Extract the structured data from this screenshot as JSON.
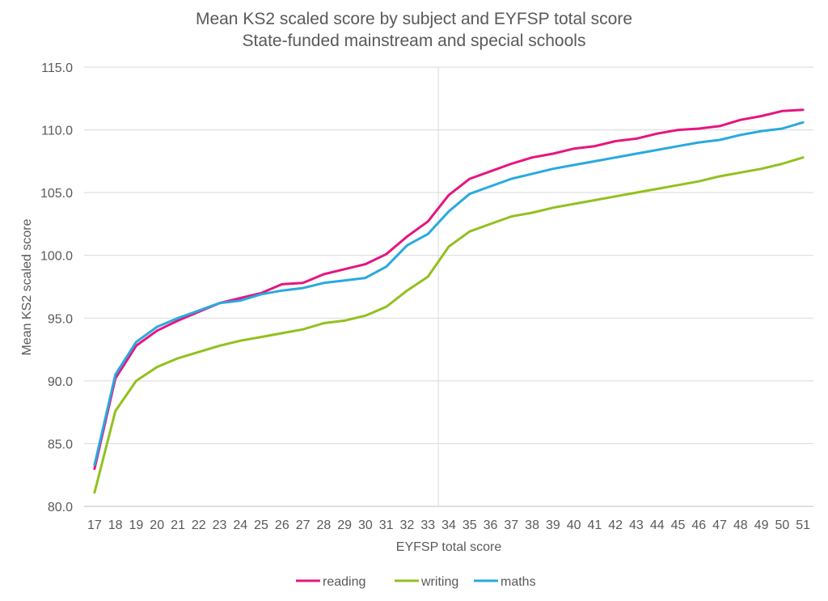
{
  "chart_data": {
    "type": "line",
    "title": "Mean KS2 scaled score by subject and EYFSP total score",
    "subtitle": "State-funded mainstream and special schools",
    "xlabel": "EYFSP total score",
    "ylabel": "Mean KS2 scaled score",
    "ylim": [
      80,
      115
    ],
    "yticks": [
      "80.0",
      "85.0",
      "90.0",
      "95.0",
      "100.0",
      "105.0",
      "110.0",
      "115.0"
    ],
    "grid": true,
    "legend": "bottom",
    "reference_line_x": 33.5,
    "x": [
      17,
      18,
      19,
      20,
      21,
      22,
      23,
      24,
      25,
      26,
      27,
      28,
      29,
      30,
      31,
      32,
      33,
      34,
      35,
      36,
      37,
      38,
      39,
      40,
      41,
      42,
      43,
      44,
      45,
      46,
      47,
      48,
      49,
      50,
      51
    ],
    "series": [
      {
        "name": "reading",
        "color": "#E6157F",
        "values": [
          83.0,
          90.2,
          92.8,
          94.0,
          94.8,
          95.5,
          96.2,
          96.6,
          97.0,
          97.7,
          97.8,
          98.5,
          98.9,
          99.3,
          100.1,
          101.5,
          102.7,
          104.8,
          106.1,
          106.7,
          107.3,
          107.8,
          108.1,
          108.5,
          108.7,
          109.1,
          109.3,
          109.7,
          110.0,
          110.1,
          110.3,
          110.8,
          111.1,
          111.5,
          111.6
        ]
      },
      {
        "name": "writing",
        "color": "#93C01F",
        "values": [
          81.1,
          87.6,
          90.0,
          91.1,
          91.8,
          92.3,
          92.8,
          93.2,
          93.5,
          93.8,
          94.1,
          94.6,
          94.8,
          95.2,
          95.9,
          97.2,
          98.3,
          100.7,
          101.9,
          102.5,
          103.1,
          103.4,
          103.8,
          104.1,
          104.4,
          104.7,
          105.0,
          105.3,
          105.6,
          105.9,
          106.3,
          106.6,
          106.9,
          107.3,
          107.8
        ]
      },
      {
        "name": "maths",
        "color": "#29A9DF",
        "values": [
          83.3,
          90.5,
          93.1,
          94.3,
          95.0,
          95.6,
          96.2,
          96.4,
          96.9,
          97.2,
          97.4,
          97.8,
          98.0,
          98.2,
          99.1,
          100.8,
          101.7,
          103.5,
          104.9,
          105.5,
          106.1,
          106.5,
          106.9,
          107.2,
          107.5,
          107.8,
          108.1,
          108.4,
          108.7,
          109.0,
          109.2,
          109.6,
          109.9,
          110.1,
          110.6
        ]
      }
    ]
  }
}
